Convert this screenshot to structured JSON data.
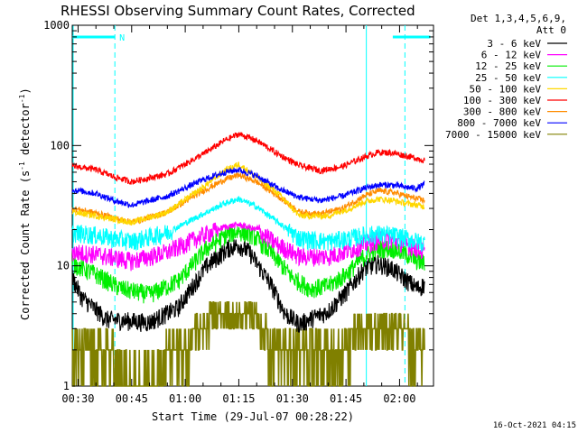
{
  "chart_data": {
    "type": "line",
    "title": "RHESSI Observing Summary Count Rates, Corrected",
    "xlabel": "Start Time (29-Jul-07 00:28:22)",
    "ylabel_main": "Corrected Count Rate (s",
    "ylabel_sup1": "-1",
    "ylabel_mid": " detector",
    "ylabel_sup2": "-1",
    "ylabel_end": ")",
    "yscale": "log",
    "ylim": [
      1,
      1000
    ],
    "xlim_minutes": [
      28.37,
      129.5
    ],
    "x_ticks": [
      {
        "label": "00:30",
        "minute": 30
      },
      {
        "label": "00:45",
        "minute": 45
      },
      {
        "label": "01:00",
        "minute": 60
      },
      {
        "label": "01:15",
        "minute": 75
      },
      {
        "label": "01:30",
        "minute": 90
      },
      {
        "label": "01:45",
        "minute": 105
      },
      {
        "label": "02:00",
        "minute": 120
      }
    ],
    "y_ticks": [
      {
        "label": "1",
        "value": 1
      },
      {
        "label": "10",
        "value": 10
      },
      {
        "label": "100",
        "value": 100
      },
      {
        "label": "1000",
        "value": 1000
      }
    ],
    "legend_header": [
      "Det 1,3,4,5,6,9,",
      "Att 0"
    ],
    "series": [
      {
        "name": "3 - 6 keV",
        "color": "#000000",
        "key": [
          [
            28.4,
            8
          ],
          [
            31,
            5.5
          ],
          [
            38,
            3.6
          ],
          [
            50,
            3.4
          ],
          [
            58,
            4.5
          ],
          [
            66,
            10
          ],
          [
            72,
            14
          ],
          [
            75,
            15
          ],
          [
            78,
            13
          ],
          [
            84,
            7
          ],
          [
            88,
            4
          ],
          [
            92,
            3.3
          ],
          [
            100,
            4.2
          ],
          [
            105,
            6
          ],
          [
            110,
            9.5
          ],
          [
            114,
            10.5
          ],
          [
            118,
            9.5
          ],
          [
            121,
            8
          ],
          [
            125,
            6.5
          ],
          [
            127,
            7
          ]
        ]
      },
      {
        "name": "6 - 12 keV",
        "color": "#ff00ff",
        "key": [
          [
            28.4,
            13
          ],
          [
            35,
            12.5
          ],
          [
            45,
            11
          ],
          [
            55,
            13
          ],
          [
            65,
            18
          ],
          [
            71,
            21
          ],
          [
            75,
            22
          ],
          [
            80,
            20
          ],
          [
            86,
            15
          ],
          [
            92,
            12
          ],
          [
            100,
            12
          ],
          [
            106,
            13.5
          ],
          [
            110,
            15
          ],
          [
            114,
            16.5
          ],
          [
            118,
            16.5
          ],
          [
            122,
            15
          ],
          [
            125,
            14
          ],
          [
            127,
            13
          ]
        ]
      },
      {
        "name": "12 - 25 keV",
        "color": "#00ee00",
        "key": [
          [
            28.4,
            10.5
          ],
          [
            35,
            8.5
          ],
          [
            42,
            6.5
          ],
          [
            50,
            5.8
          ],
          [
            58,
            7.5
          ],
          [
            66,
            14
          ],
          [
            72,
            18.5
          ],
          [
            75,
            19.5
          ],
          [
            79,
            18
          ],
          [
            85,
            12
          ],
          [
            90,
            8
          ],
          [
            95,
            6.5
          ],
          [
            100,
            6.8
          ],
          [
            105,
            8.5
          ],
          [
            110,
            12
          ],
          [
            114,
            14
          ],
          [
            118,
            14
          ],
          [
            122,
            12.5
          ],
          [
            125,
            11
          ],
          [
            127,
            10.5
          ]
        ]
      },
      {
        "name": "25 - 50 keV",
        "color": "#00ffff",
        "key": [
          [
            28.4,
            19
          ],
          [
            35,
            18
          ],
          [
            45,
            16
          ],
          [
            55,
            19
          ],
          [
            65,
            27
          ],
          [
            71,
            33
          ],
          [
            75,
            36
          ],
          [
            80,
            31
          ],
          [
            86,
            23
          ],
          [
            92,
            17
          ],
          [
            100,
            16
          ],
          [
            106,
            17
          ],
          [
            110,
            18
          ],
          [
            114,
            18.5
          ],
          [
            118,
            18
          ],
          [
            122,
            17
          ],
          [
            125,
            16
          ],
          [
            127,
            15.5
          ]
        ]
      },
      {
        "name": "50 - 100 keV",
        "color": "#ffd700",
        "key": [
          [
            28.4,
            28
          ],
          [
            35,
            26
          ],
          [
            45,
            23
          ],
          [
            55,
            28
          ],
          [
            65,
            45
          ],
          [
            71,
            62
          ],
          [
            75,
            70
          ],
          [
            80,
            55
          ],
          [
            86,
            40
          ],
          [
            92,
            26
          ],
          [
            100,
            26
          ],
          [
            106,
            30
          ],
          [
            110,
            34
          ],
          [
            114,
            36
          ],
          [
            118,
            35
          ],
          [
            122,
            33
          ],
          [
            125,
            32
          ],
          [
            127,
            31
          ]
        ]
      },
      {
        "name": "100 - 300 keV",
        "color": "#ff0000",
        "key": [
          [
            28.4,
            68
          ],
          [
            35,
            63
          ],
          [
            40,
            55
          ],
          [
            45,
            50
          ],
          [
            55,
            58
          ],
          [
            65,
            85
          ],
          [
            71,
            110
          ],
          [
            75,
            125
          ],
          [
            80,
            110
          ],
          [
            86,
            85
          ],
          [
            92,
            68
          ],
          [
            98,
            62
          ],
          [
            104,
            67
          ],
          [
            110,
            80
          ],
          [
            114,
            88
          ],
          [
            118,
            87
          ],
          [
            122,
            82
          ],
          [
            125,
            78
          ],
          [
            127,
            75
          ]
        ]
      },
      {
        "name": "300 - 800 keV",
        "color": "#ff8c00",
        "key": [
          [
            28.4,
            30
          ],
          [
            35,
            27.5
          ],
          [
            40,
            25
          ],
          [
            45,
            23
          ],
          [
            55,
            28
          ],
          [
            65,
            42
          ],
          [
            71,
            52
          ],
          [
            75,
            57
          ],
          [
            80,
            50
          ],
          [
            86,
            38
          ],
          [
            92,
            28
          ],
          [
            98,
            27
          ],
          [
            104,
            30
          ],
          [
            110,
            38
          ],
          [
            114,
            42
          ],
          [
            118,
            41
          ],
          [
            122,
            38
          ],
          [
            125,
            36
          ],
          [
            127,
            35
          ]
        ]
      },
      {
        "name": "800 - 7000 keV",
        "color": "#0000ff",
        "key": [
          [
            28.4,
            43
          ],
          [
            35,
            40
          ],
          [
            40,
            35
          ],
          [
            45,
            32
          ],
          [
            55,
            38
          ],
          [
            65,
            52
          ],
          [
            71,
            60
          ],
          [
            75,
            63
          ],
          [
            80,
            56
          ],
          [
            86,
            44
          ],
          [
            92,
            37
          ],
          [
            98,
            35
          ],
          [
            104,
            38
          ],
          [
            110,
            44
          ],
          [
            114,
            47
          ],
          [
            118,
            47
          ],
          [
            122,
            45
          ],
          [
            125,
            44
          ],
          [
            127,
            48
          ]
        ]
      },
      {
        "name": "7000 - 15000 keV",
        "color": "#808000",
        "key": [
          [
            28.4,
            1.5
          ],
          [
            40,
            1.5
          ],
          [
            50,
            1.4
          ],
          [
            58,
            1.6
          ],
          [
            64,
            3
          ],
          [
            70,
            4.2
          ],
          [
            75,
            4.5
          ],
          [
            80,
            3.5
          ],
          [
            84,
            2.2
          ],
          [
            88,
            1.5
          ],
          [
            100,
            1.5
          ],
          [
            104,
            2
          ],
          [
            108,
            3
          ],
          [
            114,
            3.3
          ],
          [
            118,
            3.1
          ],
          [
            122,
            2.6
          ],
          [
            126,
            1.8
          ],
          [
            127,
            1.5
          ]
        ]
      }
    ],
    "attenuator_state": {
      "label": "N",
      "color": "#00ffff",
      "intervals_minutes": [
        [
          28.4,
          40.3
        ],
        [
          118.1,
          128.6
        ]
      ]
    },
    "vertical_markers_minutes": [
      40.3,
      110.7,
      121.5
    ]
  },
  "footer": {
    "timestamp": "16-Oct-2021 04:15"
  }
}
